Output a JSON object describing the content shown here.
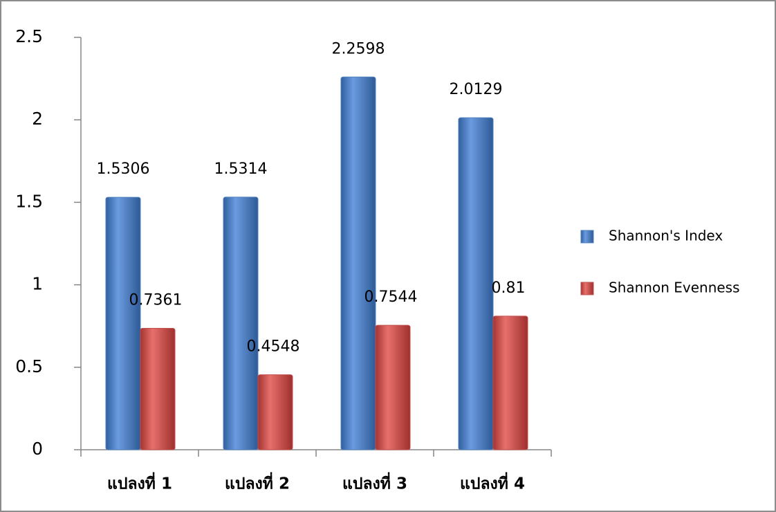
{
  "chart_data": {
    "type": "bar",
    "categories": [
      "แปลงที่ 1",
      "แปลงที่ 2",
      "แปลงที่ 3",
      "แปลงที่ 4"
    ],
    "series": [
      {
        "name": "Shannon's Index",
        "color": "#4f81bd",
        "values": [
          1.5306,
          1.5314,
          2.2598,
          2.0129
        ]
      },
      {
        "name": "Shannon Evenness",
        "color": "#c0504d",
        "values": [
          0.7361,
          0.4548,
          0.7544,
          0.81
        ]
      }
    ],
    "ylim": [
      0,
      2.5
    ],
    "yticks": [
      0,
      0.5,
      1,
      1.5,
      2,
      2.5
    ],
    "grid": false,
    "legend": "right"
  }
}
